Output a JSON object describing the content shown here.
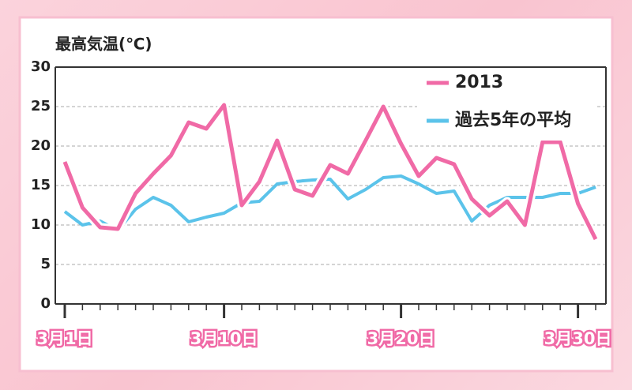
{
  "chart_data": {
    "type": "line",
    "title": "最高気温(℃)",
    "categories": [
      "3月1日",
      null,
      null,
      null,
      null,
      null,
      null,
      null,
      null,
      "3月10日",
      null,
      null,
      null,
      null,
      null,
      null,
      null,
      null,
      null,
      "3月20日",
      null,
      null,
      null,
      null,
      null,
      null,
      null,
      null,
      null,
      "3月30日",
      null
    ],
    "series": [
      {
        "name": "2013",
        "color": "#f06aa6",
        "values": [
          18,
          12.2,
          9.7,
          9.5,
          14,
          16.5,
          18.8,
          23,
          22.2,
          25.2,
          12.5,
          15.5,
          20.7,
          14.5,
          13.7,
          17.6,
          16.5,
          20.7,
          25,
          20.3,
          16.2,
          18.5,
          17.7,
          13.3,
          11.2,
          13,
          10,
          20.5,
          20.5,
          12.7,
          8.2
        ]
      },
      {
        "name": "過去5年の平均",
        "color": "#5bc3ea",
        "values": [
          11.7,
          10,
          10.5,
          9.3,
          12,
          13.5,
          12.5,
          10.4,
          11,
          11.5,
          12.8,
          13,
          15.2,
          15.5,
          15.7,
          15.8,
          13.3,
          14.5,
          16,
          16.2,
          15.2,
          14,
          14.3,
          10.5,
          12.5,
          13.5,
          13.5,
          13.5,
          14,
          14,
          14.8
        ]
      }
    ],
    "ylim": [
      0,
      30
    ],
    "yticks": [
      0,
      5,
      10,
      15,
      20,
      25,
      30
    ],
    "grid": true
  }
}
